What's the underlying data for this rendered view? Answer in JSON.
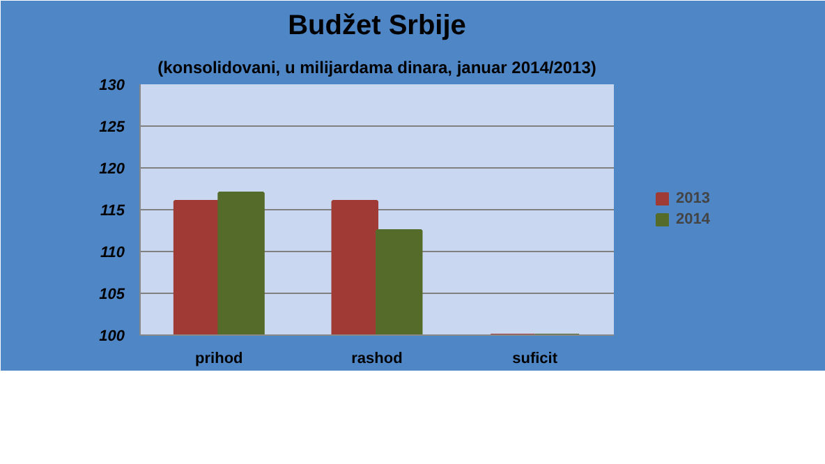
{
  "chart_data": {
    "type": "bar",
    "title": "Budžet Srbije",
    "subtitle": "(konsolidovani, u milijardama dinara, januar 2014/2013)",
    "categories": [
      "prihod",
      "rashod",
      "suficit"
    ],
    "series": [
      {
        "name": "2013",
        "color": "#a03a35",
        "values": [
          116,
          116,
          100
        ]
      },
      {
        "name": "2014",
        "color": "#556b2a",
        "values": [
          117,
          112.5,
          100
        ]
      }
    ],
    "ylim": [
      100,
      130
    ],
    "yticks": [
      100,
      105,
      110,
      115,
      120,
      125,
      130
    ],
    "grid": "y",
    "legend": "right"
  }
}
